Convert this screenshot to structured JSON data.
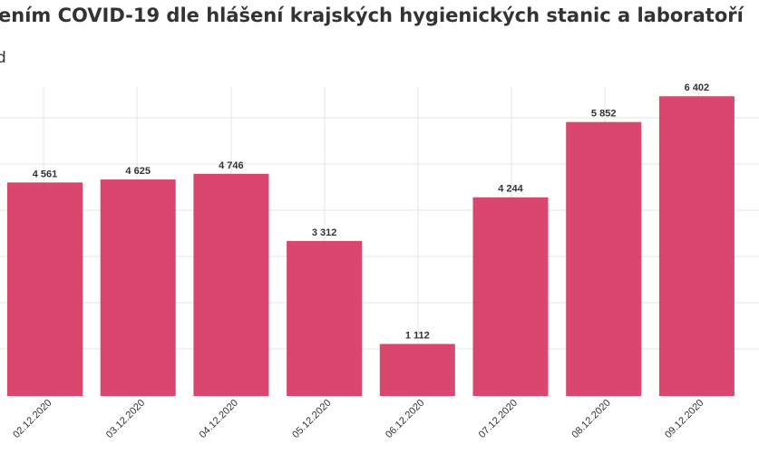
{
  "chart_data": {
    "type": "bar",
    "title": "ením COVID-19 dle hlášení krajských hygienických stanic a laboratoří",
    "subtitle": "d",
    "categories": [
      "02.12.2020",
      "03.12.2020",
      "04.12.2020",
      "05.12.2020",
      "06.12.2020",
      "07.12.2020",
      "08.12.2020",
      "09.12.2020"
    ],
    "values": [
      4561,
      4625,
      4746,
      3312,
      1112,
      4244,
      5852,
      6402
    ],
    "value_labels": [
      "4 561",
      "4 625",
      "4 746",
      "3 312",
      "1 112",
      "4 244",
      "5 852",
      "6 402"
    ],
    "ylim": [
      0,
      6600
    ],
    "grid": true,
    "colors": {
      "bar": "#d73762"
    }
  }
}
